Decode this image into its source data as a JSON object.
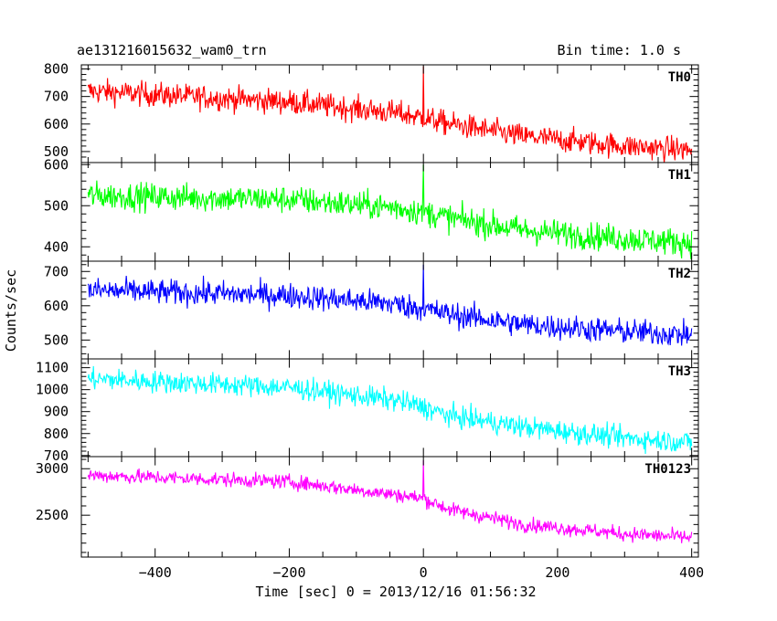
{
  "header": {
    "left_title": "ae131216015632_wam0_trn",
    "right_title": "Bin time: 1.0 s"
  },
  "chart_data": {
    "type": "line",
    "xlabel": "Time [sec] 0 = 2013/12/16 01:56:32",
    "ylabel": "Counts/sec",
    "xlim": [
      -510,
      410
    ],
    "xticks": [
      -400,
      -200,
      0,
      200,
      400
    ],
    "x_start": -500,
    "x_end": 400,
    "bin_time_s": 1.0,
    "panels": [
      {
        "name": "TH0",
        "color": "#ff0000",
        "ylim": [
          460,
          815
        ],
        "yticks": [
          500,
          600,
          700,
          800
        ],
        "trend_points": [
          [
            -500,
            720
          ],
          [
            -200,
            680
          ],
          [
            -40,
            640
          ],
          [
            -5,
            625
          ],
          [
            40,
            600
          ],
          [
            150,
            555
          ],
          [
            300,
            520
          ],
          [
            400,
            505
          ]
        ],
        "noise_amplitude": 40,
        "spike": {
          "x": 0,
          "y": 810
        }
      },
      {
        "name": "TH1",
        "color": "#00ff00",
        "ylim": [
          365,
          605
        ],
        "yticks": [
          400,
          500,
          600
        ],
        "trend_points": [
          [
            -500,
            525
          ],
          [
            -200,
            515
          ],
          [
            -40,
            495
          ],
          [
            0,
            485
          ],
          [
            40,
            470
          ],
          [
            150,
            440
          ],
          [
            300,
            420
          ],
          [
            400,
            410
          ]
        ],
        "noise_amplitude": 30,
        "spike": {
          "x": 0,
          "y": 600
        }
      },
      {
        "name": "TH2",
        "color": "#0000ff",
        "ylim": [
          445,
          730
        ],
        "yticks": [
          500,
          600,
          700
        ],
        "trend_points": [
          [
            -500,
            645
          ],
          [
            -200,
            630
          ],
          [
            -40,
            605
          ],
          [
            0,
            590
          ],
          [
            40,
            575
          ],
          [
            150,
            545
          ],
          [
            300,
            525
          ],
          [
            400,
            515
          ]
        ],
        "noise_amplitude": 33,
        "spike": {
          "x": 0,
          "y": 720
        }
      },
      {
        "name": "TH3",
        "color": "#00ffff",
        "ylim": [
          695,
          1140
        ],
        "yticks": [
          700,
          800,
          900,
          1000,
          1100
        ],
        "trend_points": [
          [
            -500,
            1050
          ],
          [
            -200,
            1010
          ],
          [
            -40,
            950
          ],
          [
            0,
            920
          ],
          [
            40,
            880
          ],
          [
            150,
            830
          ],
          [
            300,
            780
          ],
          [
            400,
            760
          ]
        ],
        "noise_amplitude": 45,
        "spike": null
      },
      {
        "name": "TH0123",
        "color": "#ff00ff",
        "ylim": [
          2050,
          3130
        ],
        "yticks": [
          2500,
          3000
        ],
        "trend_points": [
          [
            -500,
            2930
          ],
          [
            -200,
            2860
          ],
          [
            -40,
            2720
          ],
          [
            0,
            2680
          ],
          [
            40,
            2560
          ],
          [
            150,
            2400
          ],
          [
            300,
            2300
          ],
          [
            400,
            2260
          ]
        ],
        "noise_amplitude": 70,
        "spike": {
          "x": 0,
          "y": 3090
        }
      }
    ]
  }
}
